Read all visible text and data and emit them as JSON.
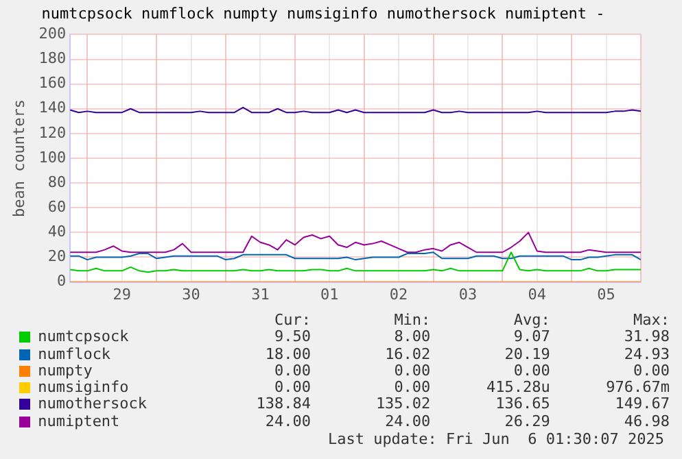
{
  "chart_data": {
    "type": "line",
    "title": "numtcpsock numflock numpty numsiginfo numothersock numiptent -",
    "ylabel": "bean counters",
    "x": [
      "2025-05-28T18:00",
      "2025-05-28T21:00",
      "2025-05-29T00:00",
      "2025-05-29T03:00",
      "2025-05-29T06:00",
      "2025-05-29T09:00",
      "2025-05-29T12:00",
      "2025-05-29T15:00",
      "2025-05-29T18:00",
      "2025-05-29T21:00",
      "2025-05-30T00:00",
      "2025-05-30T03:00",
      "2025-05-30T06:00",
      "2025-05-30T09:00",
      "2025-05-30T12:00",
      "2025-05-30T15:00",
      "2025-05-30T18:00",
      "2025-05-30T21:00",
      "2025-05-31T00:00",
      "2025-05-31T03:00",
      "2025-05-31T06:00",
      "2025-05-31T09:00",
      "2025-05-31T12:00",
      "2025-05-31T15:00",
      "2025-05-31T18:00",
      "2025-05-31T21:00",
      "2025-06-01T00:00",
      "2025-06-01T03:00",
      "2025-06-01T06:00",
      "2025-06-01T09:00",
      "2025-06-01T12:00",
      "2025-06-01T15:00",
      "2025-06-01T18:00",
      "2025-06-01T21:00",
      "2025-06-02T00:00",
      "2025-06-02T03:00",
      "2025-06-02T06:00",
      "2025-06-02T09:00",
      "2025-06-02T12:00",
      "2025-06-02T15:00",
      "2025-06-02T18:00",
      "2025-06-02T21:00",
      "2025-06-03T00:00",
      "2025-06-03T03:00",
      "2025-06-03T06:00",
      "2025-06-03T09:00",
      "2025-06-03T12:00",
      "2025-06-03T15:00",
      "2025-06-03T18:00",
      "2025-06-03T21:00",
      "2025-06-04T00:00",
      "2025-06-04T03:00",
      "2025-06-04T06:00",
      "2025-06-04T09:00",
      "2025-06-04T12:00",
      "2025-06-04T15:00",
      "2025-06-04T18:00",
      "2025-06-04T21:00",
      "2025-06-05T00:00",
      "2025-06-05T03:00",
      "2025-06-05T06:00",
      "2025-06-05T09:00",
      "2025-06-05T12:00",
      "2025-06-05T15:00",
      "2025-06-05T18:00",
      "2025-06-05T21:00",
      "2025-06-06T00:00"
    ],
    "series": [
      {
        "name": "numtcpsock",
        "color": "#00cc00",
        "values": [
          10,
          9,
          9,
          11,
          9,
          9,
          9,
          12,
          9,
          8,
          9,
          9,
          10,
          9,
          9,
          9,
          9,
          9,
          9,
          9,
          10,
          9,
          9,
          10,
          9,
          9,
          9,
          9,
          10,
          10,
          9,
          9,
          11,
          9,
          9,
          9,
          9,
          9,
          9,
          9,
          9,
          9,
          10,
          9,
          11,
          9,
          9,
          9,
          9,
          9,
          9,
          24,
          10,
          9,
          10,
          9,
          9,
          9,
          9,
          9,
          11,
          9,
          9,
          10,
          10,
          10,
          10
        ]
      },
      {
        "name": "numflock",
        "color": "#0066b3",
        "values": [
          21,
          21,
          18,
          20,
          20,
          20,
          20,
          21,
          23,
          23,
          19,
          20,
          21,
          21,
          21,
          21,
          21,
          21,
          18,
          19,
          22,
          22,
          22,
          22,
          22,
          22,
          19,
          19,
          19,
          19,
          19,
          19,
          20,
          18,
          19,
          20,
          20,
          20,
          20,
          23,
          23,
          23,
          24,
          19,
          19,
          19,
          19,
          21,
          21,
          21,
          19,
          19,
          21,
          21,
          21,
          21,
          21,
          21,
          18,
          18,
          20,
          20,
          21,
          22,
          22,
          22,
          18
        ]
      },
      {
        "name": "numpty",
        "color": "#ff8000",
        "x": [
          "2025-05-28T18:00",
          "2025-06-06T00:00"
        ],
        "values": [
          0,
          0
        ]
      },
      {
        "name": "numsiginfo",
        "color": "#ffcc00",
        "values": [
          null,
          null,
          null,
          null,
          null,
          null,
          null,
          null,
          null,
          null,
          null,
          null,
          null,
          null,
          null,
          null,
          null,
          null,
          null,
          null,
          null,
          null,
          null,
          null,
          null,
          null,
          null,
          null,
          null,
          null,
          null,
          null,
          null,
          null,
          null,
          null,
          null,
          null,
          null,
          null,
          null,
          null,
          null,
          null,
          null,
          null,
          null,
          null,
          null,
          null,
          null,
          null,
          null,
          null,
          null,
          null,
          null,
          null,
          null,
          null,
          null,
          null,
          null,
          null,
          null,
          null,
          null
        ]
      },
      {
        "name": "numothersock",
        "color": "#330099",
        "values": [
          139,
          137,
          138,
          137,
          137,
          137,
          137,
          140,
          137,
          137,
          137,
          137,
          137,
          137,
          137,
          138,
          137,
          137,
          137,
          137,
          141,
          137,
          137,
          137,
          140,
          137,
          137,
          138,
          137,
          137,
          137,
          139,
          137,
          139,
          137,
          137,
          137,
          137,
          137,
          137,
          137,
          137,
          139,
          137,
          137,
          138,
          137,
          137,
          137,
          137,
          137,
          137,
          137,
          137,
          138,
          137,
          137,
          137,
          137,
          137,
          137,
          137,
          137,
          138,
          138,
          139,
          138
        ]
      },
      {
        "name": "numiptent",
        "color": "#990099",
        "values": [
          24,
          24,
          24,
          24,
          26,
          29,
          25,
          24,
          24,
          24,
          24,
          24,
          26,
          31,
          24,
          24,
          24,
          24,
          24,
          24,
          24,
          37,
          32,
          30,
          26,
          34,
          30,
          36,
          38,
          35,
          37,
          30,
          28,
          32,
          30,
          31,
          33,
          30,
          27,
          24,
          24,
          26,
          27,
          25,
          30,
          32,
          28,
          24,
          24,
          24,
          24,
          28,
          33,
          40,
          25,
          24,
          24,
          24,
          24,
          24,
          26,
          25,
          24,
          24,
          24,
          24,
          24
        ]
      }
    ],
    "xlim": [
      "2025-05-28T18:00",
      "2025-06-06T00:00"
    ],
    "xticks": [
      {
        "value": "2025-05-29T00:00",
        "label": null
      },
      {
        "value": "2025-05-29T12:00",
        "label": "29"
      },
      {
        "value": "2025-05-30T00:00",
        "label": null
      },
      {
        "value": "2025-05-30T12:00",
        "label": "30"
      },
      {
        "value": "2025-05-31T00:00",
        "label": null
      },
      {
        "value": "2025-05-31T12:00",
        "label": "31"
      },
      {
        "value": "2025-06-01T00:00",
        "label": null
      },
      {
        "value": "2025-06-01T12:00",
        "label": "01"
      },
      {
        "value": "2025-06-02T00:00",
        "label": null
      },
      {
        "value": "2025-06-02T12:00",
        "label": "02"
      },
      {
        "value": "2025-06-03T00:00",
        "label": null
      },
      {
        "value": "2025-06-03T12:00",
        "label": "03"
      },
      {
        "value": "2025-06-04T00:00",
        "label": null
      },
      {
        "value": "2025-06-04T12:00",
        "label": "04"
      },
      {
        "value": "2025-06-05T00:00",
        "label": null
      },
      {
        "value": "2025-06-05T12:00",
        "label": "05"
      },
      {
        "value": "2025-06-06T00:00",
        "label": null
      }
    ],
    "ylim": [
      0,
      200
    ],
    "yticks": [
      0,
      20,
      40,
      60,
      80,
      100,
      120,
      140,
      160,
      180,
      200
    ],
    "grid": true,
    "legend": "bottom",
    "marker": "none",
    "line_style": "solid",
    "annotations": [
      "Cur:",
      "Min:",
      "Avg:",
      "Max:",
      "9.50",
      "8.00",
      "9.07",
      "31.98",
      "18.00",
      "16.02",
      "20.19",
      "24.93",
      "0.00",
      "0.00",
      "0.00",
      "0.00",
      "0.00",
      "0.00",
      "415.28u",
      "976.67m",
      "138.84",
      "135.02",
      "136.65",
      "149.67",
      "24.00",
      "24.00",
      "26.29",
      "46.98",
      "Last update: Fri Jun  6 01:30:07 2025"
    ]
  }
}
